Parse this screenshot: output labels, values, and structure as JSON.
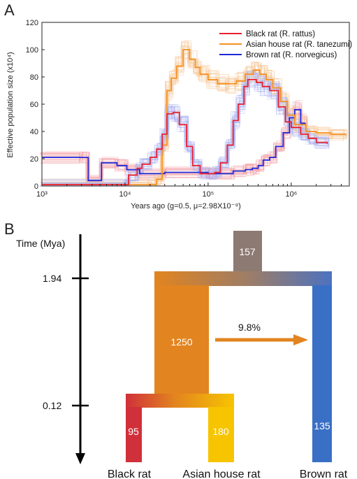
{
  "panel_a": {
    "label": "A",
    "x_axis_title": "Years ago (g=0.5, μ=2.98X10⁻⁹)",
    "y_axis_title": "Effective population size (x10⁴)",
    "x_ticks": [
      "10³",
      "10⁴",
      "10⁵",
      "10⁶"
    ],
    "y_ticks": [
      "0",
      "20",
      "40",
      "60",
      "80",
      "100",
      "120"
    ],
    "legend": [
      {
        "text": "Black rat (R. rattus)",
        "color": "#e8212f"
      },
      {
        "text": "Asian house rat (R. tanezumi)",
        "color": "#f5901e"
      },
      {
        "text": "Brown rat (R. norvegicus)",
        "color": "#1f28d6"
      }
    ]
  },
  "panel_b": {
    "label": "B",
    "time_axis_title": "Time (Mya)",
    "time_marks": [
      "1.94",
      "0.12"
    ],
    "ancestral_ne": "157",
    "internal_ne": "1250",
    "migration_label": "9.8%",
    "leaves": [
      {
        "name": "Black rat",
        "ne": "95",
        "color": "#d0303a"
      },
      {
        "name": "Asian house rat",
        "ne": "180",
        "color": "#f7c400"
      },
      {
        "name": "Brown rat",
        "ne": "135",
        "color": "#3a6fc6"
      }
    ],
    "colors": {
      "root": "#8d7a72",
      "internal": "#e2841f",
      "arrow": "#e2841f",
      "brown": "#3a6fc6"
    }
  },
  "chart_data": [
    {
      "type": "line",
      "title": "",
      "xlabel": "Years ago (g=0.5, μ=2.98X10⁻⁹)",
      "ylabel": "Effective population size (x10⁴)",
      "x_scale": "log",
      "xlim": [
        1000,
        5000000
      ],
      "ylim": [
        0,
        120
      ],
      "legend_position": "top-right",
      "series": [
        {
          "name": "Black rat (R. rattus)",
          "color": "#e8212f",
          "x": [
            1000,
            10000,
            11000,
            14000,
            16000,
            20000,
            24000,
            28000,
            32000,
            38000,
            45000,
            55000,
            65000,
            80000,
            100000,
            120000,
            140000,
            170000,
            200000,
            230000,
            270000,
            300000,
            380000,
            450000,
            550000,
            700000,
            850000,
            1000000,
            1300000,
            1600000,
            2000000,
            2700000
          ],
          "y": [
            1,
            1,
            8,
            13,
            16,
            21,
            27,
            38,
            53,
            54,
            45,
            29,
            15,
            9,
            9,
            10,
            17,
            30,
            48,
            60,
            73,
            78,
            76,
            73,
            70,
            58,
            47,
            43,
            38,
            35,
            32,
            31
          ]
        },
        {
          "name": "Asian house rat (R. tanezumi)",
          "color": "#f5901e",
          "x": [
            1000,
            20000,
            24000,
            28000,
            32000,
            36000,
            42000,
            50000,
            60000,
            70000,
            80000,
            100000,
            130000,
            170000,
            220000,
            280000,
            350000,
            420000,
            500000,
            600000,
            750000,
            900000,
            1100000,
            1500000,
            2000000,
            3000000,
            4500000
          ],
          "y": [
            1,
            1,
            5,
            30,
            70,
            79,
            88,
            100,
            93,
            87,
            82,
            78,
            75,
            75,
            77,
            82,
            85,
            82,
            78,
            72,
            62,
            52,
            45,
            40,
            39,
            38,
            37
          ]
        },
        {
          "name": "Brown rat (R. norvegicus)",
          "color": "#1f28d6",
          "x": [
            1000,
            3000,
            3600,
            5200,
            8000,
            10500,
            15000,
            30000,
            100000,
            200000,
            280000,
            340000,
            400000,
            460000,
            550000,
            650000,
            800000,
            950000,
            1100000,
            1300000,
            1500000
          ],
          "y": [
            21,
            21,
            4,
            17,
            15,
            12,
            9,
            10,
            9,
            11,
            12,
            13,
            15,
            19,
            21,
            29,
            39,
            50,
            56,
            46,
            46
          ]
        }
      ]
    },
    {
      "type": "diagram",
      "title": "",
      "time_axis": "Time (Mya)",
      "split_times_mya": {
        "root_split": 1.94,
        "black_asian_split": 0.12
      },
      "effective_population_sizes": {
        "ancestral": 157,
        "black_asian_ancestor": 1250,
        "black_rat": 95,
        "asian_house_rat": 180,
        "brown_rat": 135
      },
      "migration": {
        "from": "black_asian_ancestor",
        "to": "brown_rat",
        "rate": "9.8%"
      }
    }
  ]
}
